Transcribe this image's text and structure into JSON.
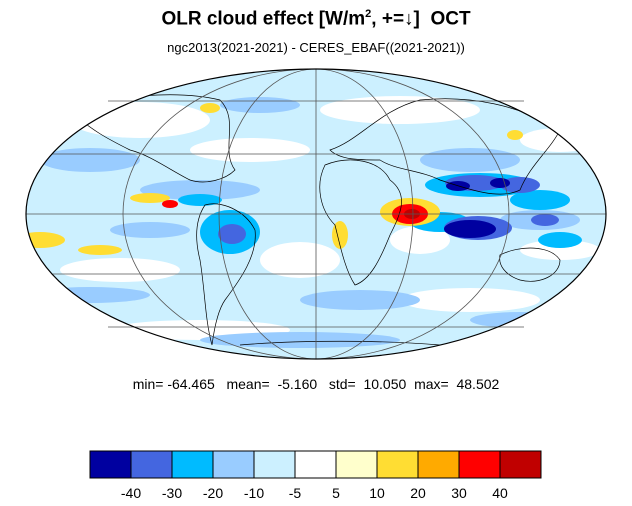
{
  "title": {
    "main": "OLR cloud effect [W/m",
    "sup": "2",
    "sign": ", +=↓]",
    "month": "OCT"
  },
  "subtitle": "ngc2013(2021-2021) - CERES_EBAF((2021-2021))",
  "stats": {
    "min_label": "min=",
    "min": "-64.465",
    "mean_label": "mean=",
    "mean": "-5.160",
    "std_label": "std=",
    "std": "10.050",
    "max_label": "max=",
    "max": "48.502"
  },
  "colorbar": {
    "colors": [
      "#0000a0",
      "#4466e0",
      "#00bbff",
      "#99ccff",
      "#ccf0ff",
      "#ffffff",
      "#ffffcc",
      "#ffdd33",
      "#ffaa00",
      "#ff0000",
      "#c00000"
    ],
    "labels": [
      "-40",
      "-30",
      "-20",
      "-10",
      "-5",
      "5",
      "10",
      "20",
      "30",
      "40"
    ]
  },
  "map": {
    "projection": "mollweide",
    "colors": {
      "ocean_light": "#ccf0ff",
      "light_blue": "#99ccff",
      "mid_blue": "#00bbff",
      "blue": "#4466e0",
      "dark_blue": "#0000a0",
      "yellow": "#ffdd33",
      "pale_yellow": "#ffffcc",
      "orange": "#ffaa00",
      "red": "#ff0000",
      "dark_red": "#c00000"
    }
  }
}
